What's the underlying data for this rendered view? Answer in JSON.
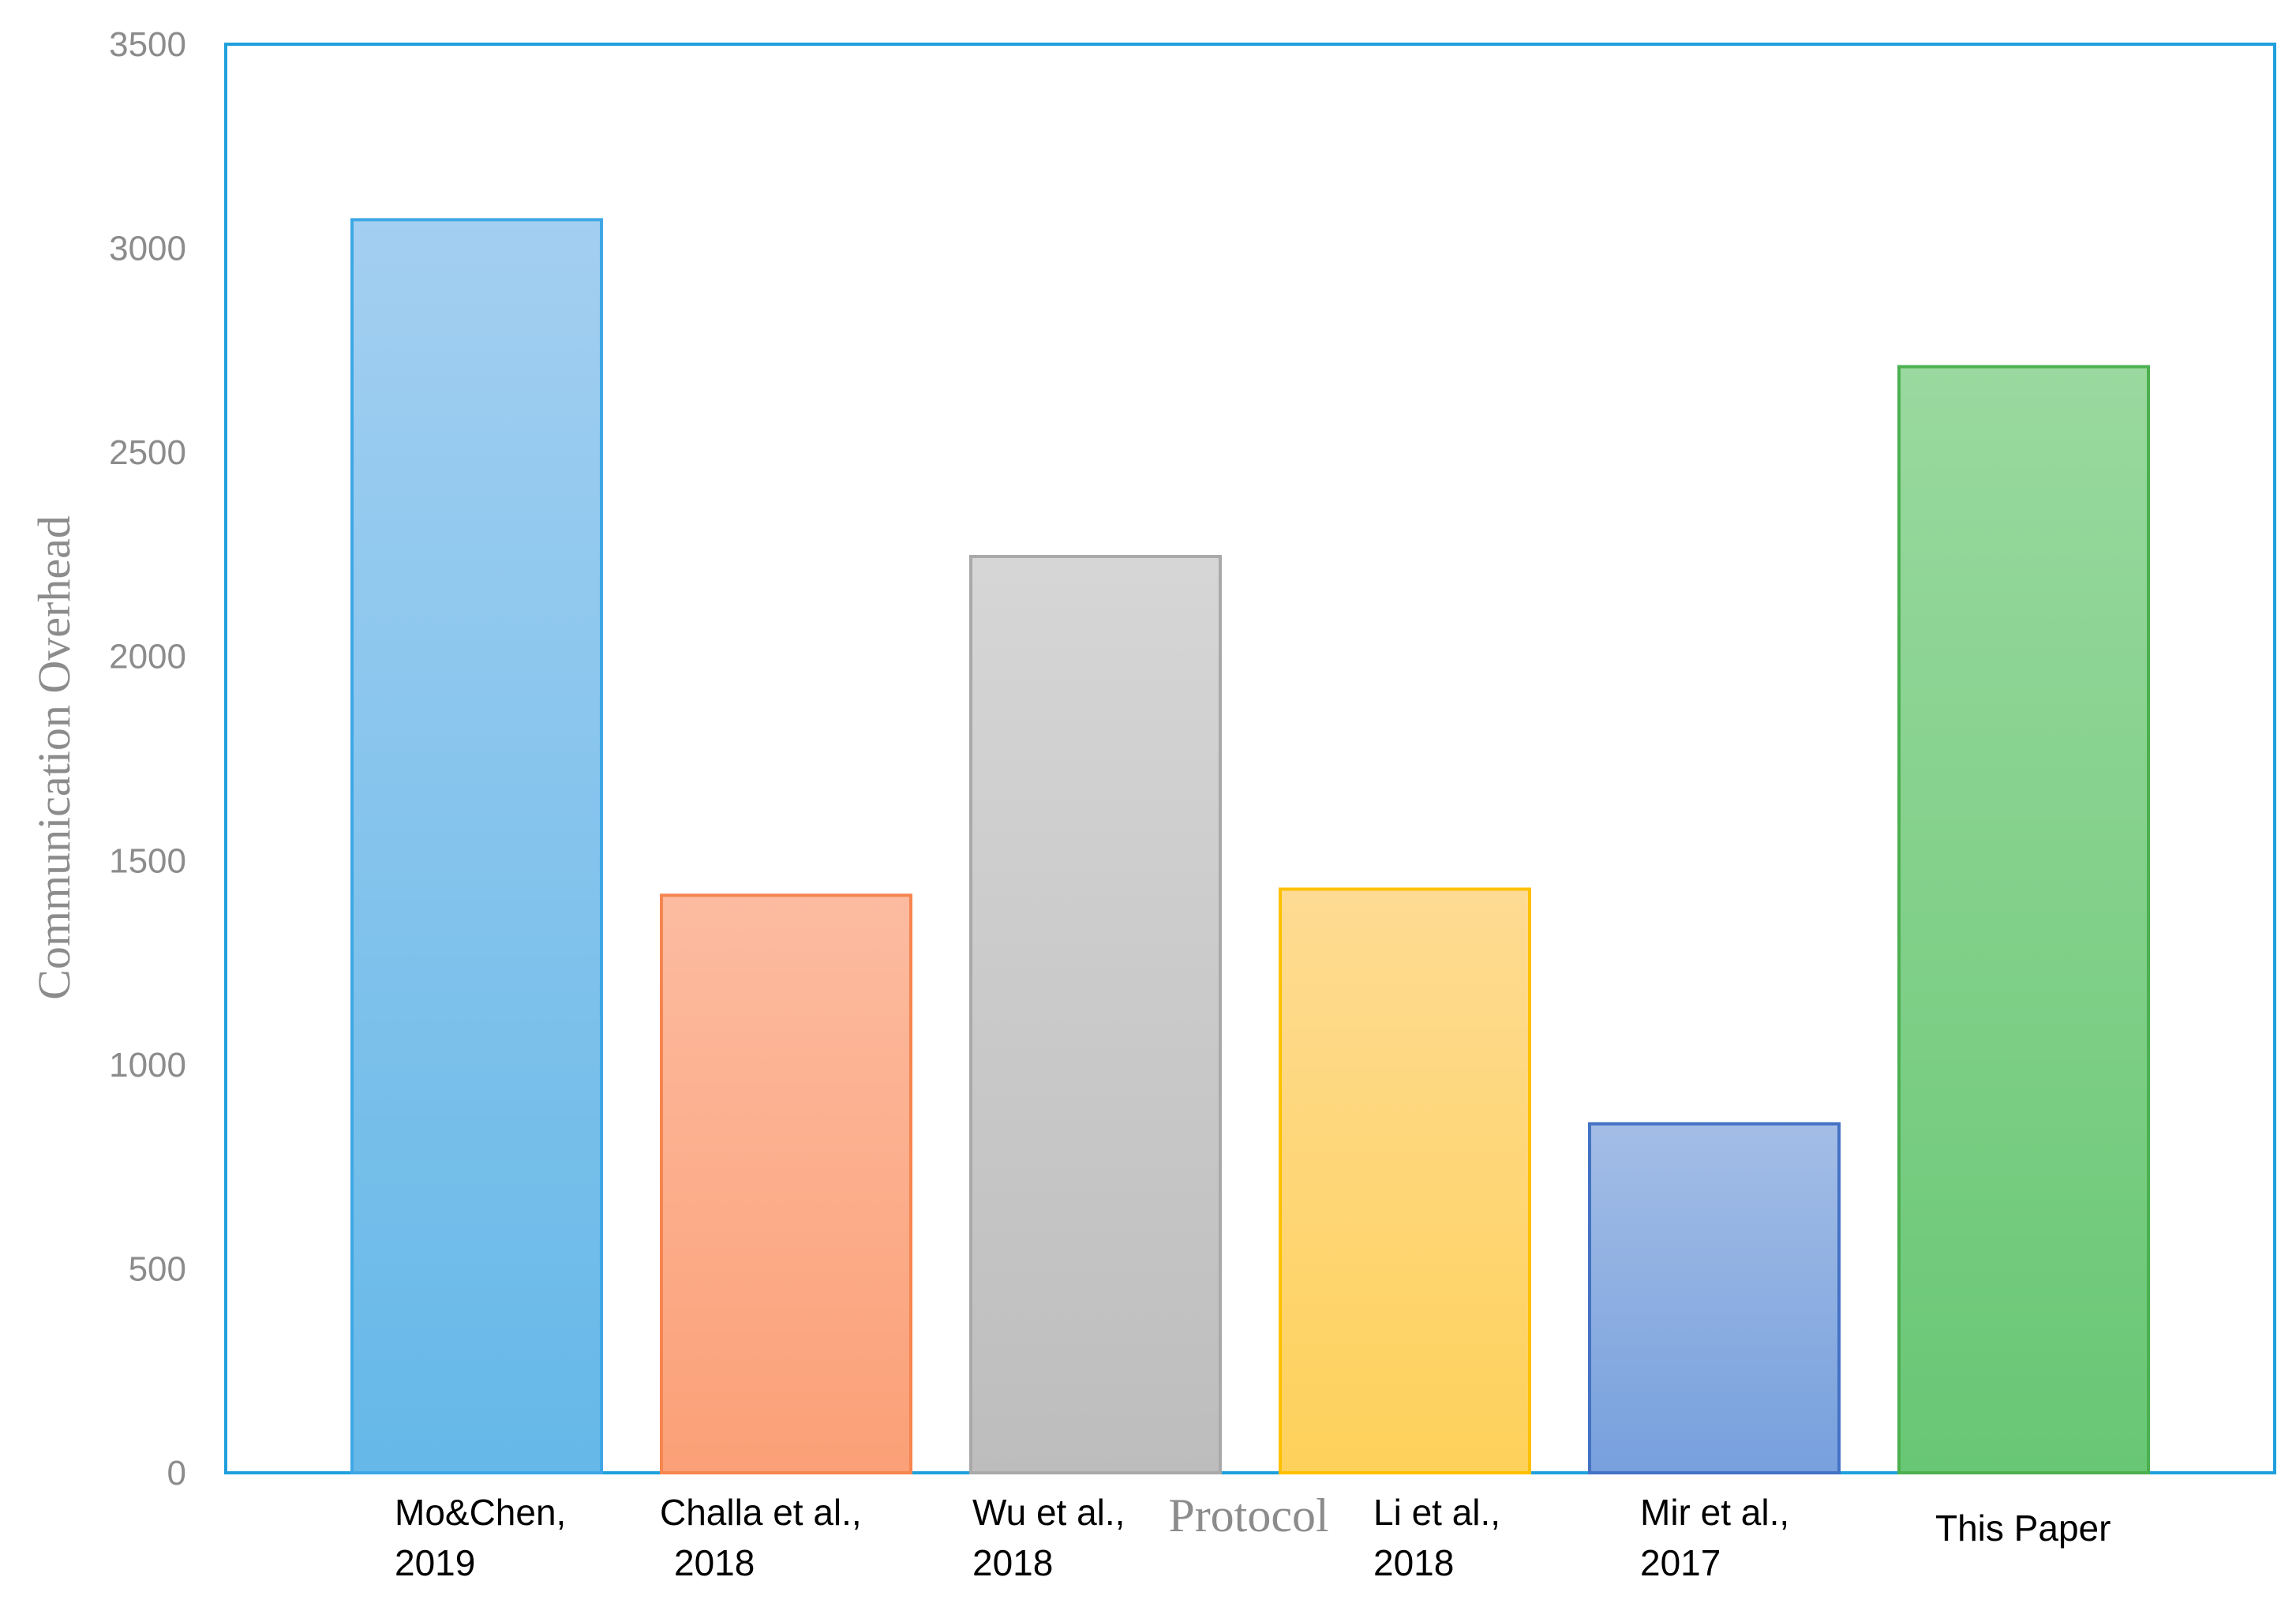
{
  "chart_data": {
    "type": "bar",
    "title": "",
    "xlabel": "Protocol",
    "ylabel": "Communication Overhead",
    "ylim": [
      0,
      3500
    ],
    "yticks": [
      "0",
      "500",
      "1000",
      "1500",
      "2000",
      "2500",
      "3000",
      "3500"
    ],
    "grid": false,
    "legend": "none",
    "categories": [
      {
        "line1": "Mo&Chen,",
        "line2": "2019"
      },
      {
        "line1": "Challa et al.,",
        "line2": "2018"
      },
      {
        "line1": "Wu et al.,",
        "line2": "2018"
      },
      {
        "line1": "Li et al.,",
        "line2": "2018"
      },
      {
        "line1": "Mir et al.,",
        "line2": "2017"
      },
      {
        "line1": "This Paper",
        "line2": ""
      }
    ],
    "values": [
      3070,
      1415,
      2245,
      1430,
      855,
      2710
    ],
    "colors": [
      {
        "top": "#a3cff1",
        "bottom": "#65b8e8",
        "stroke": "#3fa7e6"
      },
      {
        "top": "#fcbba0",
        "bottom": "#fba077",
        "stroke": "#f6854f"
      },
      {
        "top": "#d6d6d6",
        "bottom": "#bdbdbd",
        "stroke": "#a9a9a9"
      },
      {
        "top": "#fedb93",
        "bottom": "#fed15a",
        "stroke": "#ffc000"
      },
      {
        "top": "#a3bde6",
        "bottom": "#77a0dd",
        "stroke": "#4472c4"
      },
      {
        "top": "#9ad99f",
        "bottom": "#68c774",
        "stroke": "#4cb050"
      }
    ],
    "frame_color": "#1fa0dc"
  }
}
